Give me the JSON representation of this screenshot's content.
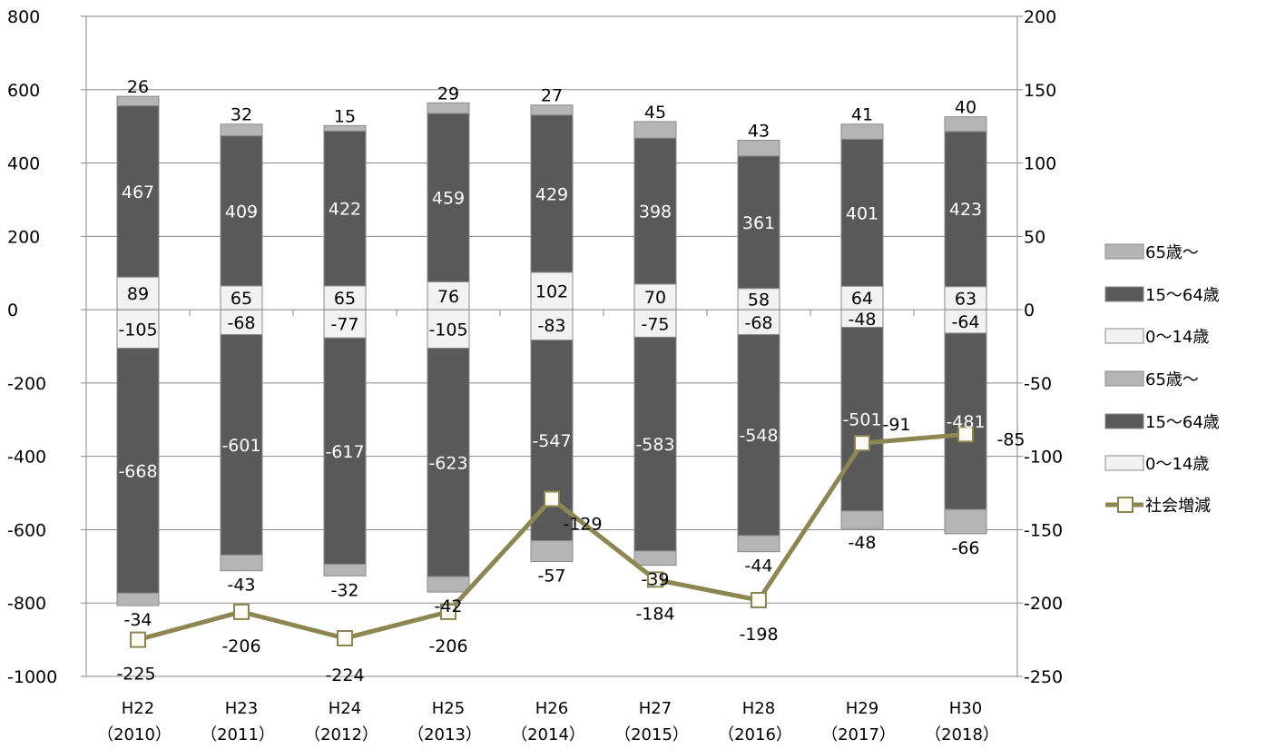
{
  "chart_data": {
    "type": "bar",
    "subtype": "stacked-bar-with-line",
    "categories": [
      [
        "H22",
        "（2010）"
      ],
      [
        "H23",
        "（2011）"
      ],
      [
        "H24",
        "（2012）"
      ],
      [
        "H25",
        "（2013）"
      ],
      [
        "H26",
        "（2014）"
      ],
      [
        "H27",
        "（2015）"
      ],
      [
        "H28",
        "（2016）"
      ],
      [
        "H29",
        "（2017）"
      ],
      [
        "H30",
        "（2018）"
      ]
    ],
    "y_left": {
      "min": -1000,
      "max": 800,
      "ticks": [
        800,
        600,
        400,
        200,
        0,
        -200,
        -400,
        -600,
        -800,
        -1000
      ]
    },
    "y_right": {
      "min": -250,
      "max": 200,
      "ticks": [
        200,
        150,
        100,
        50,
        0,
        -50,
        -100,
        -150,
        -200,
        -250
      ]
    },
    "grid": true,
    "legend_position": "right",
    "series": [
      {
        "name": "65歳〜",
        "stack": "positive",
        "color": "#b5b5b5",
        "label_color": "#000000",
        "values": [
          26,
          32,
          15,
          29,
          27,
          45,
          43,
          41,
          40
        ]
      },
      {
        "name": "15〜64歳",
        "stack": "positive",
        "color": "#595959",
        "label_color": "#ffffff",
        "values": [
          467,
          409,
          422,
          459,
          429,
          398,
          361,
          401,
          423
        ]
      },
      {
        "name": "0〜14歳",
        "stack": "positive",
        "color": "#f2f2f2",
        "label_color": "#000000",
        "values": [
          89,
          65,
          65,
          76,
          102,
          70,
          58,
          64,
          63
        ]
      },
      {
        "name": "65歳〜",
        "stack": "negative",
        "color": "#b5b5b5",
        "label_color": "#000000",
        "values": [
          -34,
          -43,
          -32,
          -42,
          -57,
          -39,
          -44,
          -48,
          -66
        ]
      },
      {
        "name": "15〜64歳",
        "stack": "negative",
        "color": "#595959",
        "label_color": "#ffffff",
        "values": [
          -668,
          -601,
          -617,
          -623,
          -547,
          -583,
          -548,
          -501,
          -481
        ]
      },
      {
        "name": "0〜14歳",
        "stack": "negative",
        "color": "#f2f2f2",
        "label_color": "#000000",
        "values": [
          -105,
          -68,
          -77,
          -105,
          -83,
          -75,
          -68,
          -48,
          -64
        ]
      },
      {
        "name": "社会増減",
        "type": "line",
        "axis": "right",
        "color": "#8c8752",
        "values": [
          -225,
          -206,
          -224,
          -206,
          -129,
          -184,
          -198,
          -91,
          -85
        ]
      }
    ]
  }
}
